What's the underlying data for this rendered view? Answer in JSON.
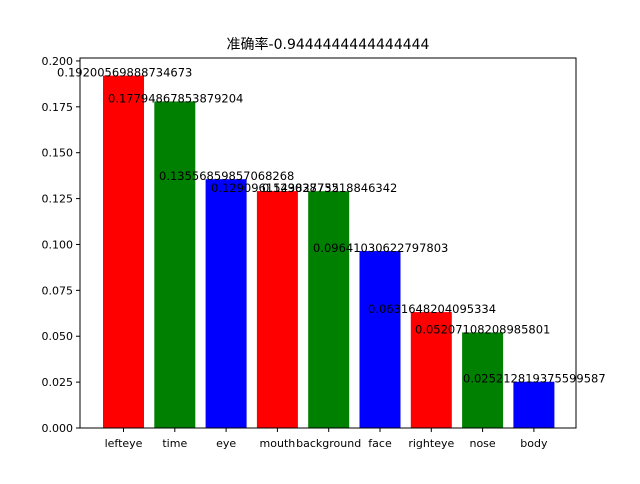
{
  "chart_data": {
    "type": "bar",
    "title": "准确率-0.9444444444444444",
    "xlabel": "",
    "ylabel": "",
    "categories": [
      "lefteye",
      "time",
      "eye",
      "mouth",
      "background",
      "face",
      "righteye",
      "nose",
      "body"
    ],
    "values": [
      0.19200569888734673,
      0.17794867853879204,
      0.13556859857068268,
      0.1290961543827755,
      0.12903873218846343,
      0.09641030622797803,
      0.0631648204095334,
      0.05207108208985801,
      0.025212819375599587
    ],
    "value_labels": [
      "0.19200569888734673",
      "0.17794867853879204",
      "0.13556859857068268",
      "0.1290961543827755",
      "0.12903873218846342",
      "0.09641030622797803",
      "0.0631648204095334",
      "0.05207108208985801",
      "0.025212819375599587"
    ],
    "bar_colors": [
      "#ff0000",
      "#008000",
      "#0000ff",
      "#ff0000",
      "#008000",
      "#0000ff",
      "#ff0000",
      "#008000",
      "#0000ff"
    ],
    "ylim": [
      0,
      0.2016
    ],
    "yticks": [
      0.0,
      0.025,
      0.05,
      0.075,
      0.1,
      0.125,
      0.15,
      0.175,
      0.2
    ],
    "ytick_labels": [
      "0.000",
      "0.025",
      "0.050",
      "0.075",
      "0.100",
      "0.125",
      "0.150",
      "0.175",
      "0.200"
    ],
    "grid": false,
    "legend": "none"
  }
}
